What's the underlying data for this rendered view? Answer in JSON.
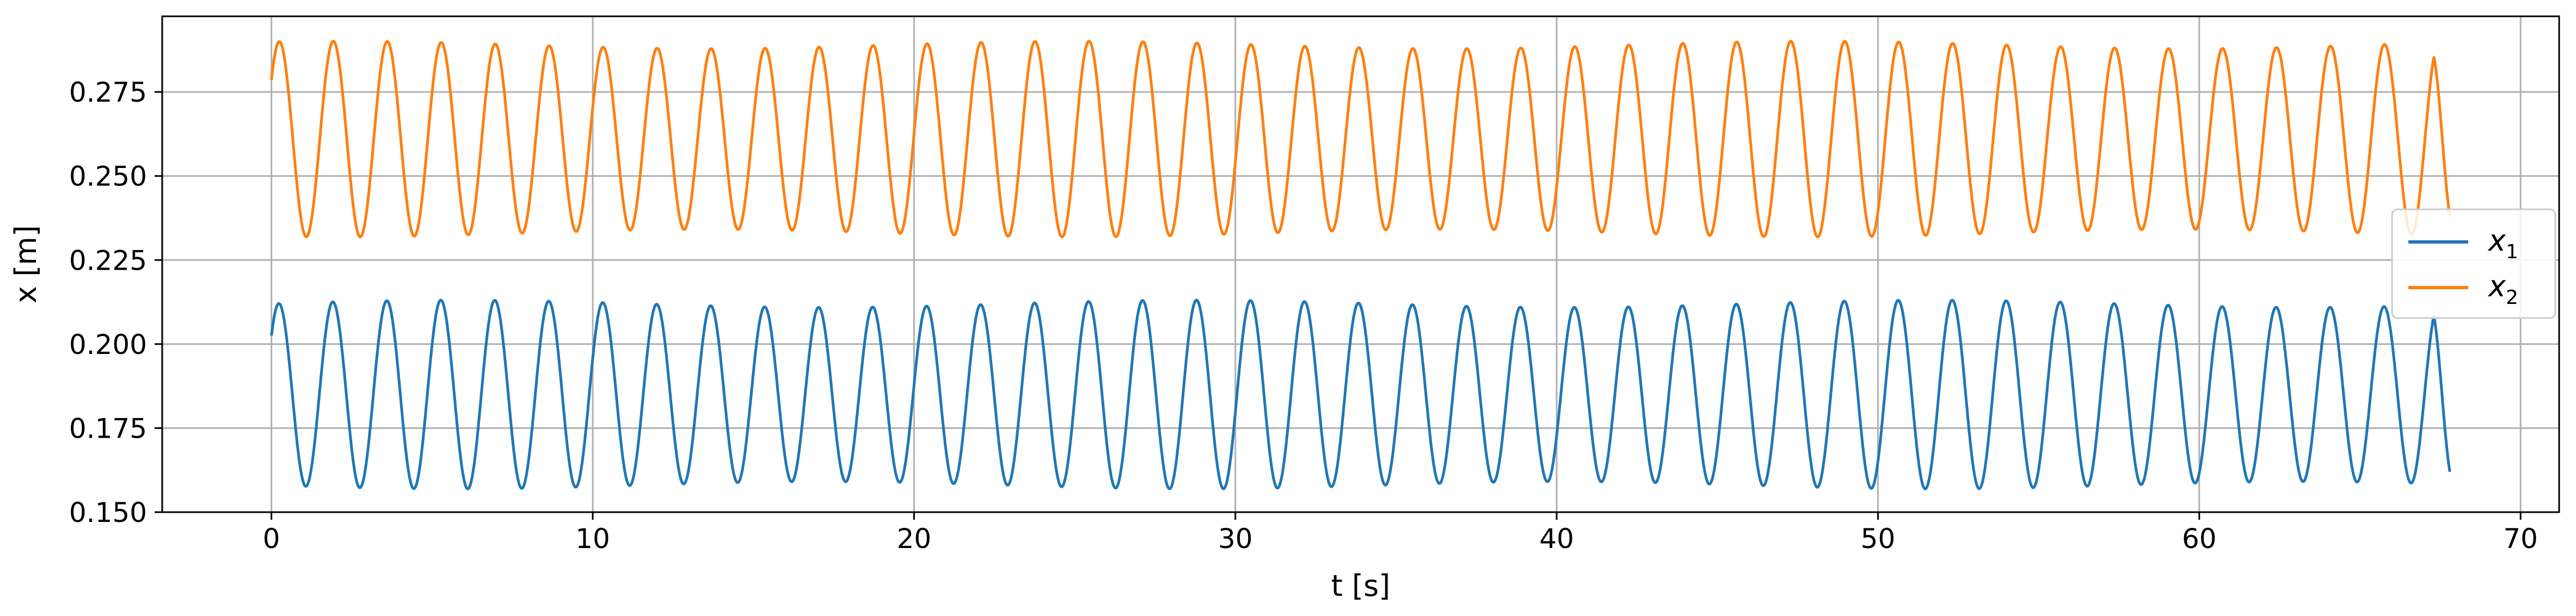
{
  "chart_data": {
    "type": "line",
    "title": "",
    "xlabel": "t [s]",
    "ylabel": "x [m]",
    "xlim": [
      -3.4,
      71.2
    ],
    "ylim": [
      0.15,
      0.2975
    ],
    "xticks": [
      0,
      10,
      20,
      30,
      40,
      50,
      60,
      70
    ],
    "yticks": [
      0.15,
      0.175,
      0.2,
      0.225,
      0.25,
      0.275
    ],
    "ytick_labels": [
      "0.150",
      "0.175",
      "0.200",
      "0.225",
      "0.250",
      "0.275"
    ],
    "grid": true,
    "legend_position": "center-right",
    "x_range": [
      0,
      67.8
    ],
    "series": [
      {
        "name": "x",
        "subscript": "1",
        "color": "#1f77b4",
        "start": 0.2025,
        "end": 0.162,
        "mean": 0.185,
        "amplitude": 0.027,
        "period_s": 1.68,
        "peak_range": [
          0.209,
          0.213
        ],
        "trough_range": [
          0.157,
          0.161
        ]
      },
      {
        "name": "x",
        "subscript": "2",
        "color": "#ff7f0e",
        "start": 0.278,
        "end": 0.238,
        "mean": 0.261,
        "amplitude": 0.028,
        "period_s": 1.68,
        "peak_range": [
          0.287,
          0.291
        ],
        "trough_range": [
          0.231,
          0.235
        ]
      }
    ]
  }
}
